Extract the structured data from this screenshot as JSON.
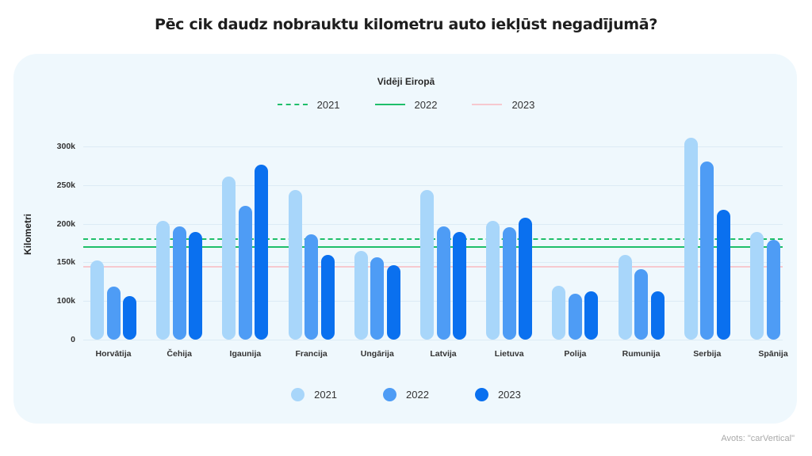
{
  "title": "Pēc cik daudz nobrauktu kilometru auto iekļūst negadījumā?",
  "source": "Avots: \"carVertical\"",
  "avg_legend": {
    "title": "Vidēji Eiropā",
    "items": [
      {
        "label": "2021",
        "style": "dashed",
        "color": "#1fbf6a"
      },
      {
        "label": "2022",
        "style": "solid",
        "color": "#1fbf6a"
      },
      {
        "label": "2023",
        "style": "solid",
        "color": "#f6c9cf"
      }
    ]
  },
  "legend": {
    "items": [
      {
        "label": "2021",
        "color": "#a8d6fa"
      },
      {
        "label": "2022",
        "color": "#4e9cf5"
      },
      {
        "label": "2023",
        "color": "#0a70ef"
      }
    ]
  },
  "chart_data": {
    "type": "bar",
    "title": "Pēc cik daudz nobrauktu kilometru auto iekļūst negadījumā?",
    "xlabel": "",
    "ylabel": "Kilometri",
    "yticks": [
      "0",
      "100k",
      "150k",
      "200k",
      "250k",
      "300k"
    ],
    "ylim": [
      0,
      300000
    ],
    "axis_note": "broken axis: 0 then 100k-300k linear",
    "grid": true,
    "legend_position": "bottom",
    "categories": [
      "Horvātija",
      "Čehija",
      "Igaunija",
      "Francija",
      "Ungārija",
      "Latvija",
      "Lietuva",
      "Polija",
      "Rumunija",
      "Serbija",
      "Spānija"
    ],
    "series": [
      {
        "name": "2021",
        "color": "#a8d6fa",
        "values": [
          152000,
          204000,
          261000,
          244000,
          165000,
          244000,
          204000,
          119000,
          160000,
          311000,
          189000
        ]
      },
      {
        "name": "2022",
        "color": "#4e9cf5",
        "values": [
          118000,
          196000,
          223000,
          186000,
          156000,
          196000,
          195000,
          109000,
          141000,
          281000,
          179000
        ]
      },
      {
        "name": "2023",
        "color": "#0a70ef",
        "values": [
          106000,
          189000,
          276000,
          160000,
          146000,
          189000,
          208000,
          112000,
          112000,
          218000,
          null
        ]
      }
    ],
    "reference_lines": {
      "title": "Vidēji Eiropā",
      "lines": [
        {
          "name": "2021",
          "value": 181000,
          "style": "dashed",
          "color": "#1fbf6a"
        },
        {
          "name": "2022",
          "value": 171000,
          "style": "solid",
          "color": "#1fbf6a"
        },
        {
          "name": "2023",
          "value": 145000,
          "style": "solid",
          "color": "#f6c9cf"
        }
      ]
    }
  }
}
